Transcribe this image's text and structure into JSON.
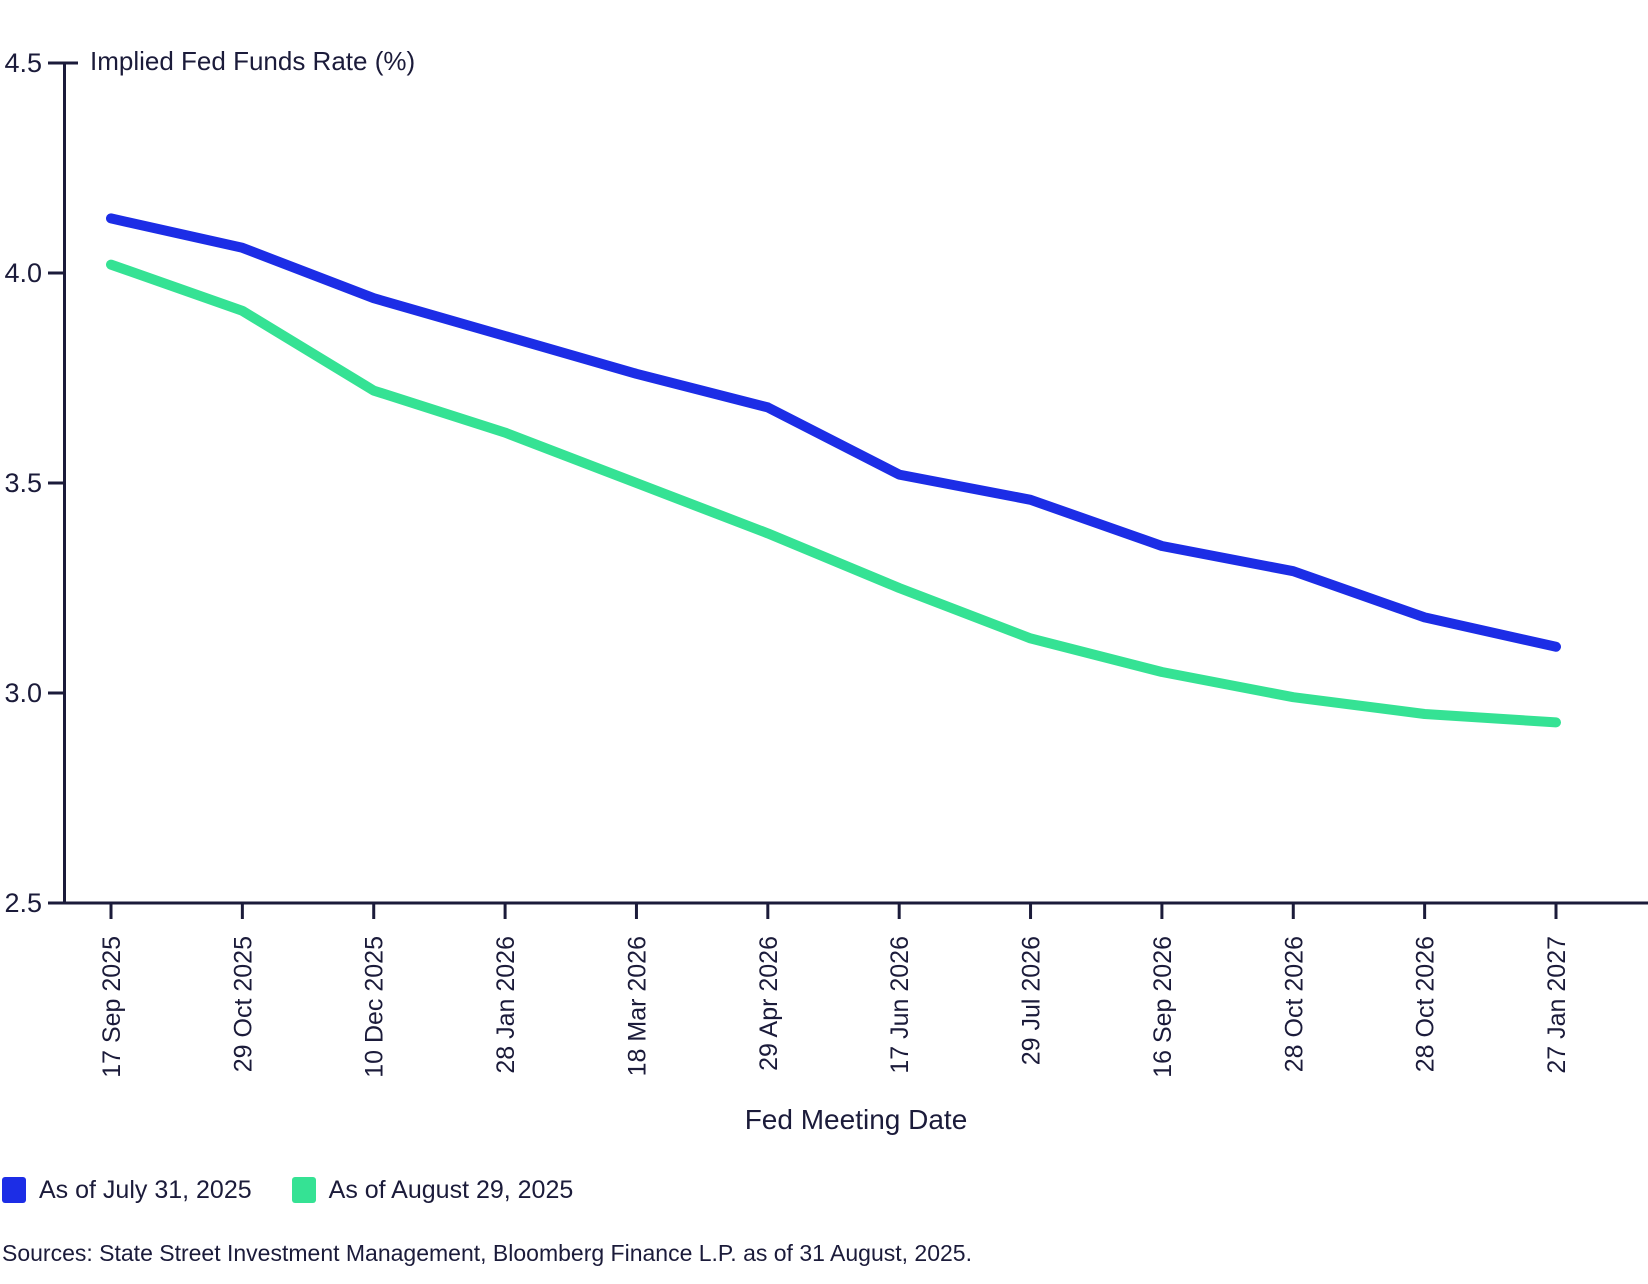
{
  "chart_data": {
    "type": "line",
    "title": "Implied Fed Funds Rate (%)",
    "xlabel": "Fed Meeting Date",
    "ylabel": "",
    "ylim": [
      2.5,
      4.5
    ],
    "yticks": [
      4.5,
      4.0,
      3.5,
      3.0,
      2.5
    ],
    "ytick_labels": [
      "4.5",
      "4.0",
      "3.5",
      "3.0",
      "2.5"
    ],
    "grid": false,
    "legend_position": "bottom-left",
    "categories": [
      "17 Sep 2025",
      "29 Oct 2025",
      "10 Dec 2025",
      "28 Jan 2026",
      "18 Mar 2026",
      "29 Apr 2026",
      "17 Jun 2026",
      "29 Jul 2026",
      "16 Sep 2026",
      "28 Oct 2026",
      "28 Oct 2026",
      "27 Jan 2027"
    ],
    "series": [
      {
        "name": "As of July 31, 2025",
        "color": "#1c2de6",
        "values": [
          4.13,
          4.06,
          3.94,
          3.85,
          3.76,
          3.68,
          3.52,
          3.46,
          3.35,
          3.29,
          3.18,
          3.11
        ]
      },
      {
        "name": "As of August 29, 2025",
        "color": "#35e294",
        "values": [
          4.02,
          3.91,
          3.72,
          3.62,
          3.5,
          3.38,
          3.25,
          3.13,
          3.05,
          2.99,
          2.95,
          2.93
        ]
      }
    ],
    "style": {
      "axis_color": "#1b1b3a",
      "text_color": "#1b1b3a",
      "line_width": 10
    }
  },
  "footer": {
    "sources": "Sources: State Street Investment Management, Bloomberg Finance L.P. as of 31 August, 2025."
  }
}
